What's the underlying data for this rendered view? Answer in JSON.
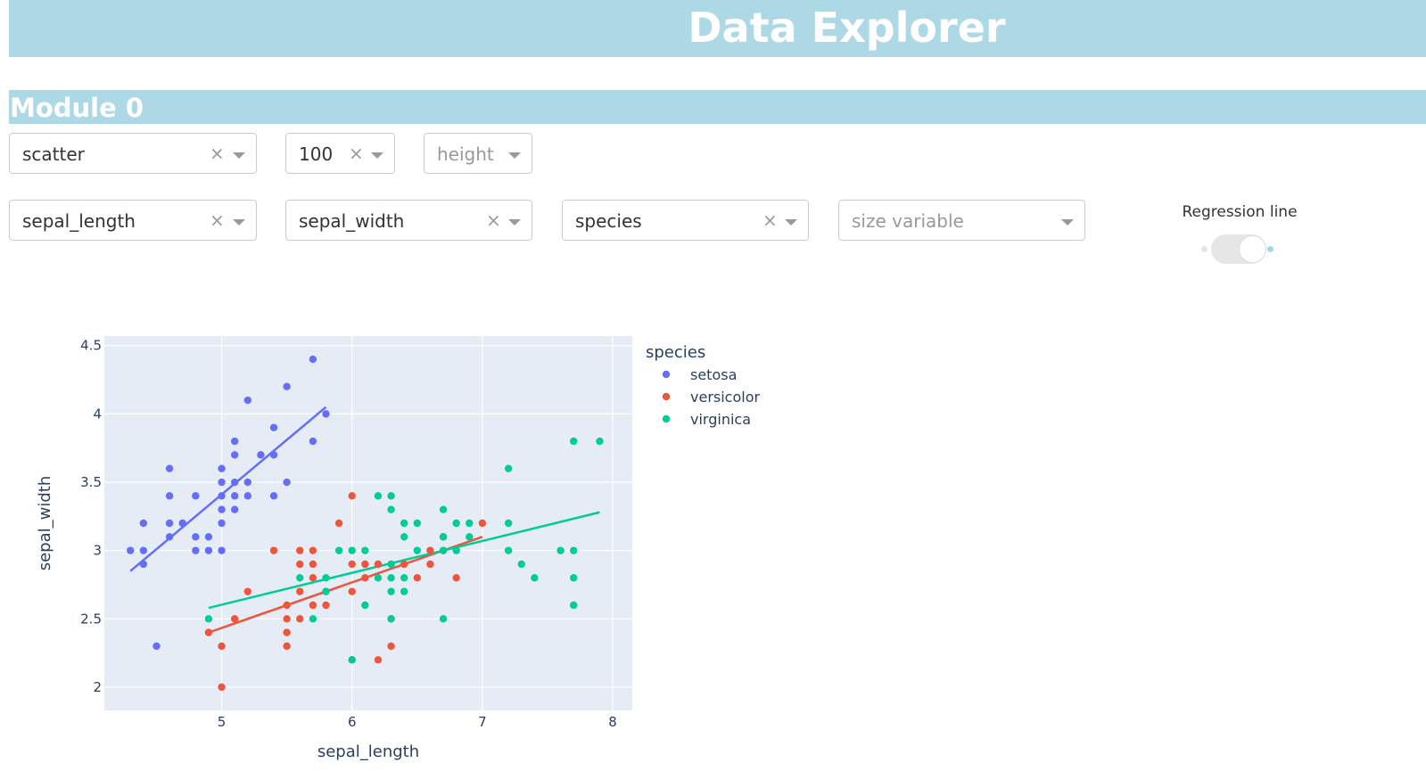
{
  "header": {
    "title": "Data Explorer"
  },
  "module": {
    "title": "Module 0"
  },
  "controls": {
    "chart_type": {
      "value": "scatter",
      "clear": "×"
    },
    "sample_size": {
      "value": "100",
      "clear": "×"
    },
    "height": {
      "placeholder": "height"
    },
    "x_variable": {
      "value": "sepal_length",
      "clear": "×"
    },
    "y_variable": {
      "value": "sepal_width",
      "clear": "×"
    },
    "color_variable": {
      "value": "species",
      "clear": "×"
    },
    "size_variable": {
      "placeholder": "size variable"
    },
    "regression_toggle": {
      "label": "Regression line",
      "on": true
    }
  },
  "chart_data": {
    "type": "scatter",
    "xlabel": "sepal_length",
    "ylabel": "sepal_width",
    "xlim": [
      4.1,
      8.15
    ],
    "ylim": [
      1.83,
      4.57
    ],
    "xticks": [
      5,
      6,
      7,
      8
    ],
    "yticks": [
      2,
      2.5,
      3,
      3.5,
      4,
      4.5
    ],
    "grid": true,
    "legend": {
      "title": "species",
      "position": "right"
    },
    "series": [
      {
        "name": "setosa",
        "color": "#636efa",
        "points": [
          [
            4.3,
            3.0
          ],
          [
            4.4,
            2.9
          ],
          [
            4.4,
            3.0
          ],
          [
            4.4,
            3.2
          ],
          [
            4.5,
            2.3
          ],
          [
            4.6,
            3.1
          ],
          [
            4.6,
            3.2
          ],
          [
            4.6,
            3.4
          ],
          [
            4.6,
            3.6
          ],
          [
            4.7,
            3.2
          ],
          [
            4.8,
            3.0
          ],
          [
            4.8,
            3.1
          ],
          [
            4.8,
            3.4
          ],
          [
            4.9,
            3.0
          ],
          [
            4.9,
            3.1
          ],
          [
            5.0,
            3.0
          ],
          [
            5.0,
            3.2
          ],
          [
            5.0,
            3.3
          ],
          [
            5.0,
            3.4
          ],
          [
            5.0,
            3.5
          ],
          [
            5.0,
            3.6
          ],
          [
            5.1,
            3.3
          ],
          [
            5.1,
            3.4
          ],
          [
            5.1,
            3.5
          ],
          [
            5.1,
            3.7
          ],
          [
            5.1,
            3.8
          ],
          [
            5.2,
            3.4
          ],
          [
            5.2,
            3.5
          ],
          [
            5.2,
            4.1
          ],
          [
            5.3,
            3.7
          ],
          [
            5.4,
            3.4
          ],
          [
            5.4,
            3.7
          ],
          [
            5.4,
            3.9
          ],
          [
            5.5,
            3.5
          ],
          [
            5.5,
            4.2
          ],
          [
            5.7,
            3.8
          ],
          [
            5.7,
            4.4
          ],
          [
            5.8,
            4.0
          ]
        ],
        "regression": [
          [
            4.3,
            2.85
          ],
          [
            5.8,
            4.05
          ]
        ]
      },
      {
        "name": "versicolor",
        "color": "#ef553b",
        "points": [
          [
            4.9,
            2.4
          ],
          [
            5.0,
            2.0
          ],
          [
            5.0,
            2.3
          ],
          [
            5.1,
            2.5
          ],
          [
            5.2,
            2.7
          ],
          [
            5.4,
            3.0
          ],
          [
            5.5,
            2.3
          ],
          [
            5.5,
            2.4
          ],
          [
            5.5,
            2.5
          ],
          [
            5.5,
            2.6
          ],
          [
            5.6,
            2.5
          ],
          [
            5.6,
            2.7
          ],
          [
            5.6,
            2.9
          ],
          [
            5.6,
            3.0
          ],
          [
            5.7,
            2.6
          ],
          [
            5.7,
            2.8
          ],
          [
            5.7,
            2.9
          ],
          [
            5.7,
            3.0
          ],
          [
            5.8,
            2.6
          ],
          [
            5.8,
            2.7
          ],
          [
            5.9,
            3.2
          ],
          [
            6.0,
            2.2
          ],
          [
            6.0,
            2.7
          ],
          [
            6.0,
            2.9
          ],
          [
            6.0,
            3.4
          ],
          [
            6.1,
            2.8
          ],
          [
            6.1,
            2.9
          ],
          [
            6.2,
            2.2
          ],
          [
            6.2,
            2.9
          ],
          [
            6.3,
            2.3
          ],
          [
            6.3,
            2.5
          ],
          [
            6.4,
            2.9
          ],
          [
            6.5,
            2.8
          ],
          [
            6.6,
            2.9
          ],
          [
            6.6,
            3.0
          ],
          [
            6.7,
            3.0
          ],
          [
            6.7,
            3.1
          ],
          [
            6.8,
            2.8
          ],
          [
            7.0,
            3.2
          ]
        ],
        "regression": [
          [
            4.9,
            2.4
          ],
          [
            7.0,
            3.1
          ]
        ]
      },
      {
        "name": "virginica",
        "color": "#00cc96",
        "points": [
          [
            4.9,
            2.5
          ],
          [
            5.6,
            2.8
          ],
          [
            5.7,
            2.5
          ],
          [
            5.8,
            2.7
          ],
          [
            5.8,
            2.8
          ],
          [
            5.9,
            3.0
          ],
          [
            6.0,
            2.2
          ],
          [
            6.0,
            3.0
          ],
          [
            6.1,
            2.6
          ],
          [
            6.1,
            3.0
          ],
          [
            6.2,
            2.8
          ],
          [
            6.2,
            3.4
          ],
          [
            6.3,
            2.5
          ],
          [
            6.3,
            2.7
          ],
          [
            6.3,
            2.8
          ],
          [
            6.3,
            2.9
          ],
          [
            6.3,
            3.3
          ],
          [
            6.3,
            3.4
          ],
          [
            6.4,
            2.7
          ],
          [
            6.4,
            2.8
          ],
          [
            6.4,
            3.1
          ],
          [
            6.4,
            3.2
          ],
          [
            6.5,
            3.0
          ],
          [
            6.5,
            3.2
          ],
          [
            6.7,
            2.5
          ],
          [
            6.7,
            3.0
          ],
          [
            6.7,
            3.1
          ],
          [
            6.7,
            3.3
          ],
          [
            6.8,
            3.0
          ],
          [
            6.8,
            3.2
          ],
          [
            6.9,
            3.1
          ],
          [
            6.9,
            3.2
          ],
          [
            7.2,
            3.0
          ],
          [
            7.2,
            3.2
          ],
          [
            7.2,
            3.6
          ],
          [
            7.3,
            2.9
          ],
          [
            7.4,
            2.8
          ],
          [
            7.6,
            3.0
          ],
          [
            7.7,
            2.6
          ],
          [
            7.7,
            2.8
          ],
          [
            7.7,
            3.0
          ],
          [
            7.7,
            3.8
          ],
          [
            7.9,
            3.8
          ]
        ],
        "regression": [
          [
            4.9,
            2.58
          ],
          [
            7.9,
            3.28
          ]
        ]
      }
    ]
  }
}
